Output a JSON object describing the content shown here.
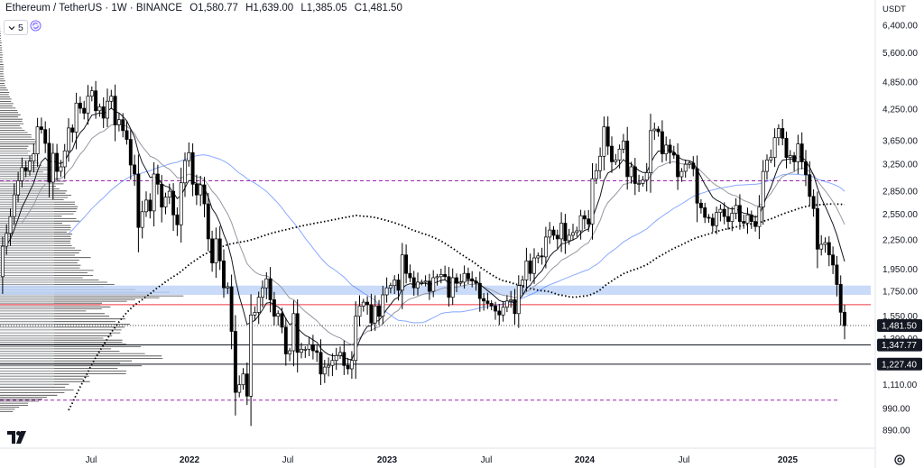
{
  "legend": {
    "symbol": "Ethereum / TetherUS · 1W · BINANCE",
    "open_key": "O",
    "open": "1,580.77",
    "high_key": "H",
    "high": "1,639.00",
    "low_key": "L",
    "low": "1,385.05",
    "close_key": "C",
    "close": "1,481.50"
  },
  "indicator": {
    "count": "5"
  },
  "currency": "USDT",
  "price_labels": [
    {
      "text": "1,481.50",
      "price": 1481.5,
      "style": "dark"
    },
    {
      "text": "1,347.77",
      "price": 1347.77,
      "style": "dark"
    },
    {
      "text": "1,227.40",
      "price": 1227.4,
      "style": "dark"
    }
  ],
  "colors": {
    "up": "#ffffff",
    "down": "#000000",
    "candle_border": "#000000",
    "ema_fast": "#131722",
    "ema_slow": "#9598a1",
    "ma_blue": "#2962ff",
    "ma_dotted": "#000000",
    "zone": "#bbd2f8",
    "red_line": "#f23645",
    "purple_dashed": "#9c27b0",
    "volume_profile": "#000000"
  },
  "chart_data": {
    "type": "candlestick",
    "timeframe": "1W",
    "y_scale": "log",
    "y_ticks": [
      890,
      990,
      1110,
      1227.4,
      1390,
      1550,
      1750,
      1950,
      2250,
      2550,
      2850,
      3250,
      3650,
      4250,
      4850,
      5600,
      6400
    ],
    "y_tick_labels": [
      "890.00",
      "990.00",
      "1,110.00",
      "1,227.40",
      "1,390.00",
      "1,550.00",
      "1,750.00",
      "1,950.00",
      "2,250.00",
      "2,550.00",
      "2,850.00",
      "3,250.00",
      "3,650.00",
      "4,250.00",
      "4,850.00",
      "5,600.00",
      "6,400.00"
    ],
    "x_ticks": [
      "Jul",
      "2022",
      "Jul",
      "2023",
      "Jul",
      "2024",
      "Jul",
      "2025"
    ],
    "x_tick_dates": [
      "2021-07",
      "2022-01",
      "2022-07",
      "2023-01",
      "2023-07",
      "2024-01",
      "2024-07",
      "2025-01"
    ],
    "levels": {
      "zone": [
        1720,
        1800
      ],
      "red_line": 1640,
      "purple_dashed_top": 3000,
      "purple_dashed_bottom": 1030,
      "support_1": 1347.77,
      "support_2": 1227.4,
      "last_close": 1481.5
    },
    "weekly_closes": [
      2260,
      2080,
      1880,
      2180,
      2320,
      2520,
      2800,
      3000,
      3200,
      3150,
      3300,
      3420,
      3900,
      3850,
      3600,
      2980,
      3430,
      3140,
      3210,
      3470,
      3880,
      3800,
      4380,
      4270,
      4170,
      4530,
      4650,
      4220,
      4300,
      4070,
      4420,
      4530,
      3940,
      4040,
      3830,
      3670,
      3240,
      3100,
      2390,
      2580,
      2730,
      2590,
      3100,
      2950,
      2640,
      2770,
      2850,
      2540,
      2420,
      2970,
      3310,
      3440,
      2950,
      2800,
      2940,
      2680,
      2260,
      2010,
      2260,
      2030,
      1780,
      1790,
      1440,
      1070,
      1110,
      1170,
      1050,
      1560,
      1580,
      1700,
      1780,
      1860,
      1680,
      1550,
      1570,
      1470,
      1290,
      1310,
      1570,
      1300,
      1320,
      1320,
      1350,
      1310,
      1300,
      1170,
      1210,
      1220,
      1250,
      1280,
      1300,
      1220,
      1200,
      1250,
      1550,
      1630,
      1660,
      1640,
      1500,
      1630,
      1550,
      1720,
      1780,
      1800,
      1850,
      1760,
      2090,
      1910,
      1870,
      1780,
      1830,
      1830,
      1840,
      1750,
      1870,
      1880,
      1900,
      1880,
      1700,
      1870,
      1820,
      1830,
      1910,
      1860,
      1840,
      1820,
      1690,
      1670,
      1650,
      1630,
      1590,
      1560,
      1620,
      1670,
      1680,
      1570,
      1800,
      1850,
      2030,
      1910,
      2060,
      2080,
      2070,
      2280,
      2360,
      2300,
      2260,
      2440,
      2240,
      2300,
      2330,
      2350,
      2530,
      2490,
      2430,
      3030,
      3150,
      3380,
      3900,
      3550,
      3290,
      3320,
      3500,
      3640,
      3060,
      3210,
      2960,
      2960,
      3010,
      3120,
      3830,
      3860,
      3810,
      3420,
      3570,
      3440,
      3400,
      3060,
      3140,
      3250,
      3270,
      3180,
      2690,
      2630,
      2510,
      2500,
      2410,
      2570,
      2610,
      2520,
      2460,
      2560,
      2660,
      2460,
      2440,
      2540,
      2460,
      2400,
      2640,
      3140,
      3320,
      3360,
      3700,
      3870,
      3690,
      3360,
      3390,
      3290,
      3590,
      3290,
      3090,
      2780,
      2620,
      2150,
      2200,
      2220,
      2090,
      1990,
      1810,
      1580,
      1480
    ],
    "series": [
      {
        "name": "",
        "type": "ema",
        "color": "#131722"
      },
      {
        "name": "",
        "type": "ema",
        "color": "#9598a1"
      },
      {
        "name": "",
        "type": "ma",
        "color": "#2962ff"
      },
      {
        "name": "",
        "type": "ma",
        "color": "#000000",
        "style": "dotted"
      }
    ]
  }
}
